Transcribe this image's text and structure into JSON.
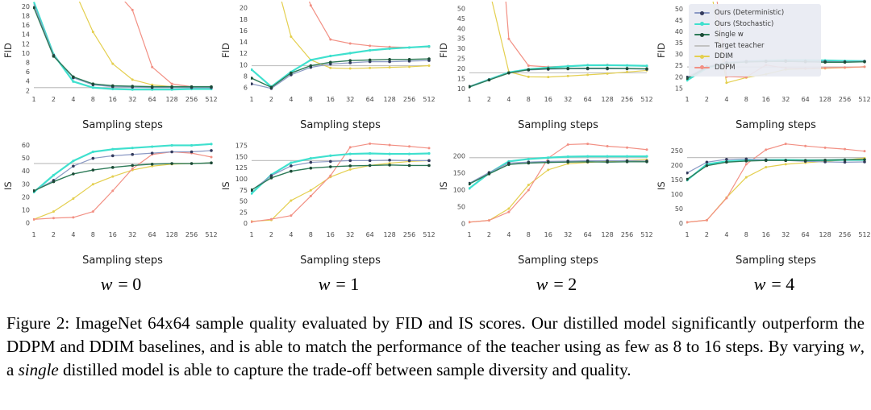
{
  "legend": {
    "entries": [
      {
        "label": "Ours (Deterministic)",
        "color": "#8b99c4",
        "marker_color": "#333a5c",
        "lw": 1.2,
        "mr": 1.8
      },
      {
        "label": "Ours (Stochastic)",
        "color": "#3fe0ce",
        "marker_color": "#3fe0ce",
        "lw": 2.2,
        "mr": 1.6
      },
      {
        "label": "Single w",
        "color": "#2c7a57",
        "marker_color": "#1c4a36",
        "lw": 1.4,
        "mr": 1.8
      },
      {
        "label": "Target teacher",
        "color": "#c2c2c2",
        "marker_color": "#c2c2c2",
        "lw": 1.2,
        "mr": 0
      },
      {
        "label": "DDIM",
        "color": "#e4cf4f",
        "marker_color": "#e4cf4f",
        "lw": 1.2,
        "mr": 1.5
      },
      {
        "label": "DDPM",
        "color": "#f29084",
        "marker_color": "#f29084",
        "lw": 1.2,
        "mr": 1.5
      }
    ]
  },
  "w_labels": [
    {
      "var": "w",
      "eq": "= 0"
    },
    {
      "var": "w",
      "eq": "= 1"
    },
    {
      "var": "w",
      "eq": "= 2"
    },
    {
      "var": "w",
      "eq": "= 4"
    }
  ],
  "caption": {
    "segments": [
      {
        "text": "Figure 2: ImageNet 64x64 sample quality evaluated by FID and IS scores. Our distilled model significantly outperform the DDPM and DDIM baselines, and is able to match the performance of the teacher using as few as 8 to 16 steps. By varying ",
        "italic": false
      },
      {
        "text": "w",
        "italic": true
      },
      {
        "text": ", a ",
        "italic": false
      },
      {
        "text": "single",
        "italic": true
      },
      {
        "text": " distilled model is able to capture the trade-off between sample diversity and quality.",
        "italic": false
      }
    ]
  },
  "chart_data": [
    {
      "type": "line",
      "title": "w = 0",
      "ylabel": "FID",
      "xlabel": "Sampling steps",
      "xscale": "log2",
      "x": [
        1,
        2,
        4,
        8,
        16,
        32,
        64,
        128,
        256,
        512
      ],
      "x_ticklabels": [
        "1",
        "2",
        "4",
        "8",
        "16",
        "32",
        "64",
        "128",
        "256",
        "512"
      ],
      "ylim": [
        1.8,
        20.4
      ],
      "yticks": [
        2,
        4,
        6,
        8,
        10,
        12,
        14,
        16,
        18,
        20
      ],
      "series": [
        {
          "name": "Target teacher",
          "values": [
            2.7,
            2.7,
            2.7,
            2.7,
            2.7,
            2.7,
            2.7,
            2.7,
            2.7,
            2.7
          ]
        },
        {
          "name": "DDIM",
          "values": [
            70,
            40,
            24,
            14.6,
            7.8,
            4.4,
            3.3,
            2.9,
            2.8,
            2.8
          ]
        },
        {
          "name": "DDPM",
          "values": [
            300,
            180,
            90,
            45,
            24,
            19.3,
            7.1,
            3.5,
            2.9,
            2.8
          ]
        },
        {
          "name": "Ours (Stochastic)",
          "values": [
            21,
            9.8,
            4.0,
            2.7,
            2.4,
            2.3,
            2.3,
            2.3,
            2.4,
            2.4
          ]
        },
        {
          "name": "Ours (Deterministic)",
          "values": [
            20.5,
            9.6,
            4.8,
            3.3,
            2.9,
            2.8,
            2.7,
            2.7,
            2.7,
            2.7
          ]
        },
        {
          "name": "Single w",
          "values": [
            19.8,
            9.4,
            5.0,
            3.5,
            3.1,
            3.0,
            2.9,
            2.9,
            2.9,
            2.9
          ]
        }
      ]
    },
    {
      "type": "line",
      "title": "w = 1",
      "ylabel": "FID",
      "xlabel": "Sampling steps",
      "xscale": "log2",
      "x": [
        1,
        2,
        4,
        8,
        16,
        32,
        64,
        128,
        256,
        512
      ],
      "x_ticklabels": [
        "1",
        "2",
        "4",
        "8",
        "16",
        "32",
        "64",
        "128",
        "256",
        "512"
      ],
      "ylim": [
        5.3,
        20.6
      ],
      "yticks": [
        6,
        8,
        10,
        12,
        14,
        16,
        18,
        20
      ],
      "series": [
        {
          "name": "Target teacher",
          "values": [
            9.9,
            9.9,
            9.9,
            9.9,
            9.9,
            9.9,
            9.9,
            9.9,
            9.9,
            9.9
          ]
        },
        {
          "name": "DDIM",
          "values": [
            45,
            28,
            15,
            10.9,
            9.5,
            9.4,
            9.5,
            9.6,
            9.7,
            9.9
          ]
        },
        {
          "name": "DDPM",
          "values": [
            90,
            55,
            30,
            20.5,
            14.5,
            13.8,
            13.4,
            13.2,
            13.1,
            13.2
          ]
        },
        {
          "name": "Ours (Stochastic)",
          "values": [
            9.2,
            6.2,
            8.8,
            10.9,
            11.6,
            12.1,
            12.6,
            12.9,
            13.1,
            13.3
          ]
        },
        {
          "name": "Ours (Deterministic)",
          "values": [
            6.7,
            5.9,
            8.3,
            9.6,
            10.2,
            10.4,
            10.6,
            10.6,
            10.7,
            10.8
          ]
        },
        {
          "name": "Single w",
          "values": [
            7.7,
            6.1,
            8.6,
            9.9,
            10.5,
            10.8,
            10.9,
            11.0,
            11.0,
            11.1
          ]
        }
      ]
    },
    {
      "type": "line",
      "title": "w = 2",
      "ylabel": "FID",
      "xlabel": "Sampling steps",
      "xscale": "log2",
      "x": [
        1,
        2,
        4,
        8,
        16,
        32,
        64,
        128,
        256,
        512
      ],
      "x_ticklabels": [
        "1",
        "2",
        "4",
        "8",
        "16",
        "32",
        "64",
        "128",
        "256",
        "512"
      ],
      "ylim": [
        8.5,
        52
      ],
      "yticks": [
        10,
        15,
        20,
        25,
        30,
        35,
        40,
        45,
        50
      ],
      "series": [
        {
          "name": "Target teacher",
          "values": [
            18,
            18,
            18,
            18,
            18,
            18,
            18,
            18,
            18,
            18
          ]
        },
        {
          "name": "DDIM",
          "values": [
            150,
            60,
            18.5,
            16.0,
            15.9,
            16.4,
            17.0,
            17.6,
            18.4,
            19.2
          ]
        },
        {
          "name": "DDPM",
          "values": [
            400,
            160,
            35,
            21.6,
            21.0,
            21.4,
            21.9,
            22.0,
            21.7,
            21.3
          ]
        },
        {
          "name": "Ours (Stochastic)",
          "values": [
            11,
            14.7,
            18.2,
            19.8,
            20.6,
            21.3,
            21.8,
            21.8,
            21.7,
            21.5
          ]
        },
        {
          "name": "Ours (Deterministic)",
          "values": [
            11.2,
            14.5,
            18.0,
            19.4,
            19.8,
            20.0,
            20.0,
            20.0,
            20.0,
            19.8
          ]
        },
        {
          "name": "Single w",
          "values": [
            11.0,
            14.4,
            17.9,
            19.6,
            20.1,
            20.2,
            20.3,
            20.3,
            20.2,
            20.0
          ]
        }
      ]
    },
    {
      "type": "line",
      "title": "w = 4",
      "ylabel": "FID",
      "xlabel": "Sampling steps",
      "xscale": "log2",
      "x": [
        1,
        2,
        4,
        8,
        16,
        32,
        64,
        128,
        256,
        512
      ],
      "x_ticklabels": [
        "1",
        "2",
        "4",
        "8",
        "16",
        "32",
        "64",
        "128",
        "256",
        "512"
      ],
      "ylim": [
        13.5,
        52
      ],
      "yticks": [
        15,
        20,
        25,
        30,
        35,
        40,
        45,
        50
      ],
      "legend_visible": true,
      "series": [
        {
          "name": "Target teacher",
          "values": [
            24.5,
            24.5,
            24.5,
            24.5,
            24.5,
            24.5,
            24.5,
            24.5,
            24.5,
            24.5
          ]
        },
        {
          "name": "DDIM",
          "values": [
            150,
            70,
            17.5,
            19.8,
            21.3,
            23.4,
            23.7,
            23.9,
            24.2,
            24.6
          ]
        },
        {
          "name": "DDPM",
          "values": [
            200,
            90,
            20.2,
            20.0,
            25.4,
            24.0,
            23.9,
            24.1,
            24.3,
            24.6
          ]
        },
        {
          "name": "Ours (Stochastic)",
          "values": [
            18.6,
            24.0,
            26.4,
            27.0,
            27.3,
            27.5,
            27.5,
            27.4,
            27.2,
            27.1
          ]
        },
        {
          "name": "Ours (Deterministic)",
          "values": [
            20.0,
            24.6,
            26.6,
            27.0,
            27.1,
            27.2,
            27.0,
            26.9,
            26.8,
            27.0
          ]
        },
        {
          "name": "Single w",
          "values": [
            19.4,
            24.3,
            26.2,
            26.7,
            26.9,
            27.0,
            26.8,
            26.6,
            26.6,
            26.8
          ]
        }
      ]
    },
    {
      "type": "line",
      "title": "w = 0",
      "ylabel": "IS",
      "xlabel": "Sampling steps",
      "xscale": "log2",
      "x": [
        1,
        2,
        4,
        8,
        16,
        32,
        64,
        128,
        256,
        512
      ],
      "x_ticklabels": [
        "1",
        "2",
        "4",
        "8",
        "16",
        "32",
        "64",
        "128",
        "256",
        "512"
      ],
      "ylim": [
        -3,
        64
      ],
      "yticks": [
        0,
        10,
        20,
        30,
        40,
        50,
        60
      ],
      "series": [
        {
          "name": "Target teacher",
          "values": [
            46,
            46,
            46,
            46,
            46,
            46,
            46,
            46,
            46,
            46
          ]
        },
        {
          "name": "DDIM",
          "values": [
            3,
            9,
            19,
            30,
            36,
            41,
            44,
            45.5,
            46,
            46.5
          ]
        },
        {
          "name": "DDPM",
          "values": [
            3,
            4,
            4.5,
            9,
            25,
            42,
            53,
            55,
            54,
            51
          ]
        },
        {
          "name": "Ours (Stochastic)",
          "values": [
            24,
            37,
            48,
            55,
            57,
            58,
            59,
            60,
            60,
            61
          ]
        },
        {
          "name": "Ours (Deterministic)",
          "values": [
            25,
            33,
            44,
            50,
            52,
            53,
            54,
            55,
            55,
            56
          ]
        },
        {
          "name": "Single w",
          "values": [
            25,
            32,
            38,
            41,
            43,
            44.5,
            45.5,
            46,
            46,
            46.5
          ]
        }
      ]
    },
    {
      "type": "line",
      "title": "w = 1",
      "ylabel": "IS",
      "xlabel": "Sampling steps",
      "xscale": "log2",
      "x": [
        1,
        2,
        4,
        8,
        16,
        32,
        64,
        128,
        256,
        512
      ],
      "x_ticklabels": [
        "1",
        "2",
        "4",
        "8",
        "16",
        "32",
        "64",
        "128",
        "256",
        "512"
      ],
      "ylim": [
        -8,
        188
      ],
      "yticks": [
        0,
        25,
        50,
        75,
        100,
        125,
        150,
        175
      ],
      "series": [
        {
          "name": "Target teacher",
          "values": [
            142,
            142,
            142,
            142,
            142,
            142,
            142,
            142,
            142,
            142
          ]
        },
        {
          "name": "DDIM",
          "values": [
            5,
            8,
            52,
            75,
            105,
            122,
            131,
            136,
            140,
            142
          ]
        },
        {
          "name": "DDPM",
          "values": [
            4,
            10,
            18,
            62,
            108,
            172,
            180,
            177,
            174,
            170
          ]
        },
        {
          "name": "Ours (Stochastic)",
          "values": [
            68,
            110,
            137,
            147,
            153,
            157,
            158,
            157,
            157,
            158
          ]
        },
        {
          "name": "Ours (Deterministic)",
          "values": [
            75,
            108,
            130,
            138,
            140,
            142,
            142,
            143,
            142,
            142
          ]
        },
        {
          "name": "Single w",
          "values": [
            76,
            103,
            118,
            125,
            128,
            130,
            131,
            132,
            131,
            131
          ]
        }
      ]
    },
    {
      "type": "line",
      "title": "w = 2",
      "ylabel": "IS",
      "xlabel": "Sampling steps",
      "xscale": "log2",
      "x": [
        1,
        2,
        4,
        8,
        16,
        32,
        64,
        128,
        256,
        512
      ],
      "x_ticklabels": [
        "1",
        "2",
        "4",
        "8",
        "16",
        "32",
        "64",
        "128",
        "256",
        "512"
      ],
      "ylim": [
        -10,
        248
      ],
      "yticks": [
        0,
        50,
        100,
        150,
        200
      ],
      "series": [
        {
          "name": "Target teacher",
          "values": [
            196,
            196,
            196,
            196,
            196,
            196,
            196,
            196,
            196,
            196
          ]
        },
        {
          "name": "DDIM",
          "values": [
            5,
            10,
            45,
            115,
            160,
            178,
            182,
            185,
            188,
            190
          ]
        },
        {
          "name": "DDPM",
          "values": [
            5,
            10,
            35,
            100,
            195,
            235,
            237,
            230,
            226,
            220
          ]
        },
        {
          "name": "Ours (Stochastic)",
          "values": [
            105,
            150,
            185,
            192,
            196,
            199,
            200,
            200,
            200,
            200
          ]
        },
        {
          "name": "Ours (Deterministic)",
          "values": [
            120,
            152,
            180,
            183,
            185,
            186,
            187,
            187,
            187,
            186
          ]
        },
        {
          "name": "Single w",
          "values": [
            118,
            148,
            176,
            180,
            182,
            183,
            184,
            183,
            184,
            184
          ]
        }
      ]
    },
    {
      "type": "line",
      "title": "w = 4",
      "ylabel": "IS",
      "xlabel": "Sampling steps",
      "xscale": "log2",
      "x": [
        1,
        2,
        4,
        8,
        16,
        32,
        64,
        128,
        256,
        512
      ],
      "x_ticklabels": [
        "1",
        "2",
        "4",
        "8",
        "16",
        "32",
        "64",
        "128",
        "256",
        "512"
      ],
      "ylim": [
        -12,
        288
      ],
      "yticks": [
        0,
        50,
        100,
        150,
        200,
        250
      ],
      "series": [
        {
          "name": "Target teacher",
          "values": [
            228,
            228,
            228,
            228,
            228,
            228,
            228,
            228,
            228,
            228
          ]
        },
        {
          "name": "DDIM",
          "values": [
            5,
            12,
            90,
            160,
            195,
            205,
            210,
            215,
            220,
            226
          ]
        },
        {
          "name": "DDPM",
          "values": [
            5,
            12,
            88,
            205,
            255,
            275,
            268,
            262,
            257,
            250
          ]
        },
        {
          "name": "Ours (Stochastic)",
          "values": [
            150,
            205,
            215,
            218,
            220,
            220,
            219,
            219,
            220,
            220
          ]
        },
        {
          "name": "Ours (Deterministic)",
          "values": [
            175,
            212,
            222,
            223,
            220,
            218,
            215,
            213,
            212,
            213
          ]
        },
        {
          "name": "Single w",
          "values": [
            153,
            200,
            212,
            216,
            218,
            218,
            218,
            219,
            220,
            221
          ]
        }
      ]
    }
  ]
}
